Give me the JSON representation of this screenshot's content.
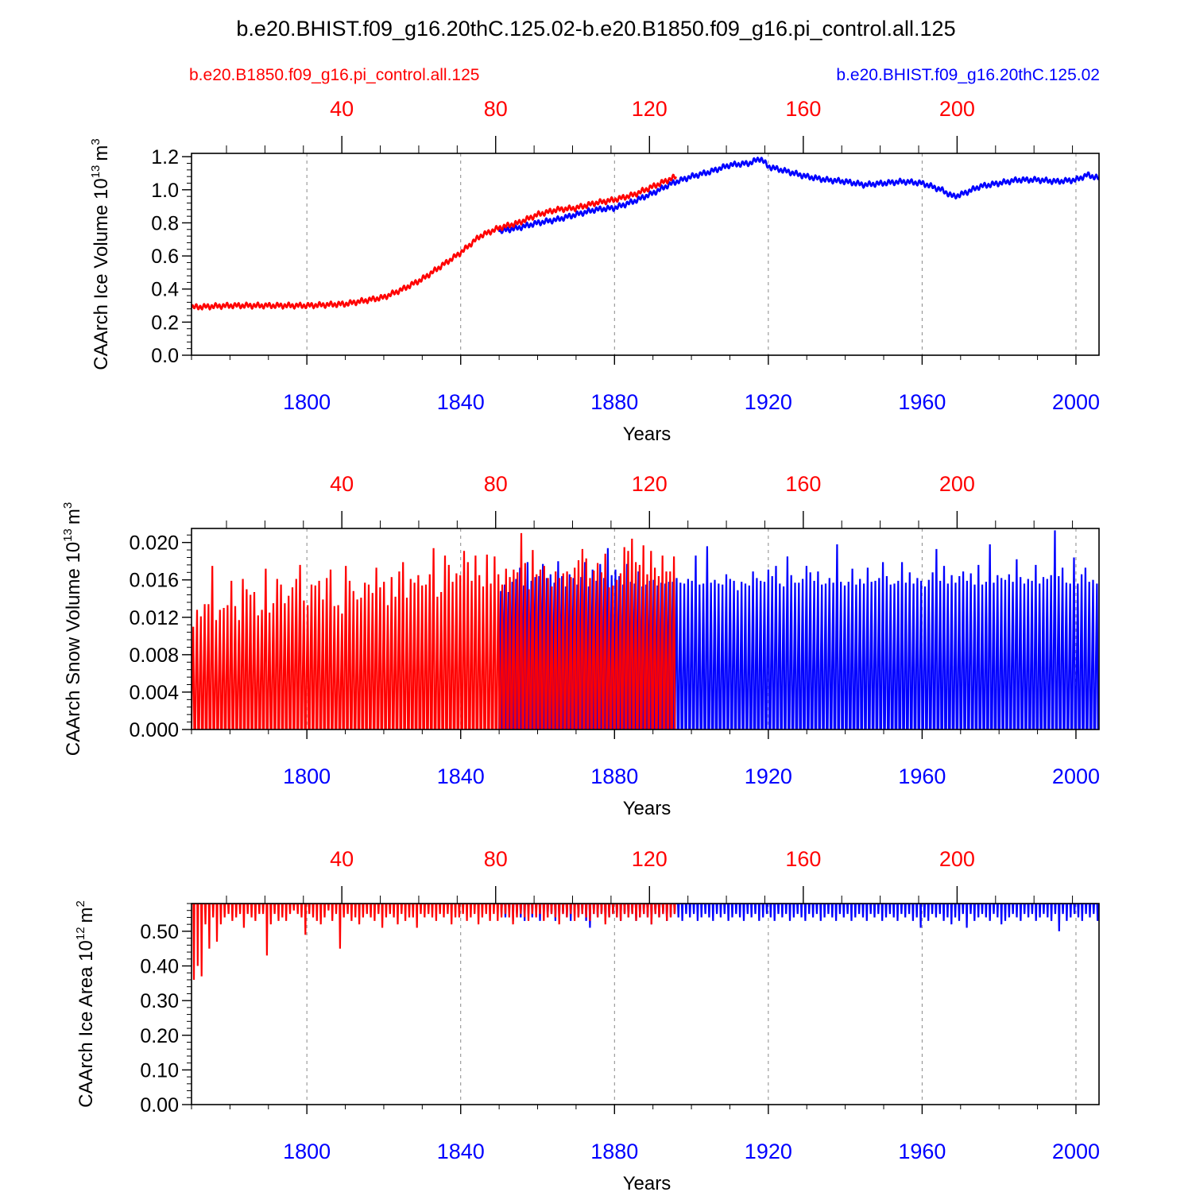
{
  "title": "b.e20.BHIST.f09_g16.20thC.125.02-b.e20.B1850.f09_g16.pi_control.all.125",
  "legend": {
    "control_label": "b.e20.B1850.f09_g16.pi_control.all.125",
    "hist_label": "b.e20.BHIST.f09_g16.20thC.125.02"
  },
  "colors": {
    "control": "#ff0000",
    "hist": "#0000ff",
    "axis": "#000000",
    "grid": "#888888"
  },
  "chart_data": [
    {
      "type": "line",
      "name": "ice-volume",
      "ylabel": "CAArch Ice Volume 10^13 m^3",
      "ylabel_main": "CAArch Ice Volume 10",
      "ylabel_exp": "13",
      "ylabel_unit": "m",
      "ylabel_unit_exp": "3",
      "xlabel": "Years",
      "xlim": [
        1770,
        2006
      ],
      "ylim": [
        0.0,
        1.22
      ],
      "yticks": [
        0.0,
        0.2,
        0.4,
        0.6,
        0.8,
        1.0,
        1.2
      ],
      "ytick_labels": [
        "0.0",
        "0.2",
        "0.4",
        "0.6",
        "0.8",
        "1.0",
        "1.2"
      ],
      "bottom_ticks": [
        1800,
        1840,
        1880,
        1920,
        1960,
        2000
      ],
      "bottom_tick_labels": [
        "1800",
        "1840",
        "1880",
        "1920",
        "1960",
        "2000"
      ],
      "top_ticks": [
        40,
        80,
        120,
        160,
        200
      ],
      "top_tick_labels": [
        "40",
        "80",
        "120",
        "160",
        "200"
      ],
      "series": [
        {
          "name": "b.e20.B1850.f09_g16.pi_control.all.125",
          "color": "#ff0000",
          "x": [
            1770,
            1780,
            1790,
            1800,
            1810,
            1815,
            1820,
            1825,
            1830,
            1835,
            1840,
            1845,
            1850,
            1855,
            1860,
            1865,
            1870,
            1875,
            1880,
            1885,
            1890,
            1896
          ],
          "y": [
            0.29,
            0.3,
            0.3,
            0.3,
            0.31,
            0.33,
            0.35,
            0.4,
            0.46,
            0.54,
            0.62,
            0.72,
            0.77,
            0.8,
            0.85,
            0.88,
            0.89,
            0.92,
            0.94,
            0.97,
            1.02,
            1.08
          ]
        },
        {
          "name": "b.e20.BHIST.f09_g16.20thC.125.02",
          "color": "#0000ff",
          "x": [
            1850,
            1855,
            1860,
            1865,
            1870,
            1875,
            1880,
            1885,
            1890,
            1895,
            1900,
            1905,
            1910,
            1915,
            1918,
            1920,
            1925,
            1930,
            1935,
            1940,
            1945,
            1950,
            1955,
            1960,
            1965,
            1968,
            1970,
            1975,
            1980,
            1985,
            1990,
            1995,
            2000,
            2003,
            2006
          ],
          "y": [
            0.75,
            0.77,
            0.8,
            0.82,
            0.85,
            0.88,
            0.89,
            0.93,
            0.98,
            1.04,
            1.08,
            1.11,
            1.15,
            1.16,
            1.19,
            1.14,
            1.11,
            1.08,
            1.06,
            1.05,
            1.03,
            1.04,
            1.05,
            1.04,
            1.0,
            0.96,
            0.97,
            1.02,
            1.04,
            1.06,
            1.06,
            1.05,
            1.06,
            1.09,
            1.07
          ]
        }
      ]
    },
    {
      "type": "line",
      "name": "snow-volume",
      "ylabel": "CAArch Snow Volume 10^13 m^3",
      "ylabel_main": "CAArch Snow Volume 10",
      "ylabel_exp": "13",
      "ylabel_unit": "m",
      "ylabel_unit_exp": "3",
      "xlabel": "Years",
      "xlim": [
        1770,
        2006
      ],
      "ylim": [
        0.0,
        0.0215
      ],
      "yticks": [
        0.0,
        0.004,
        0.008,
        0.012,
        0.016,
        0.02
      ],
      "ytick_labels": [
        "0.000",
        "0.004",
        "0.008",
        "0.012",
        "0.016",
        "0.020"
      ],
      "bottom_ticks": [
        1800,
        1840,
        1880,
        1920,
        1960,
        2000
      ],
      "bottom_tick_labels": [
        "1800",
        "1840",
        "1880",
        "1920",
        "1960",
        "2000"
      ],
      "top_ticks": [
        40,
        80,
        120,
        160,
        200
      ],
      "top_tick_labels": [
        "40",
        "80",
        "120",
        "160",
        "200"
      ],
      "seasonal": {
        "min": 0.0,
        "typical_max": 0.015
      },
      "series": [
        {
          "name": "b.e20.B1850.f09_g16.pi_control.all.125",
          "color": "#ff0000",
          "x_start": 1770,
          "x_end": 1896,
          "peaks": [
            0.011,
            0.0128,
            0.0121,
            0.0134,
            0.0134,
            0.0175,
            0.0117,
            0.0128,
            0.013,
            0.0133,
            0.0159,
            0.0132,
            0.0117,
            0.0161,
            0.015,
            0.0144,
            0.0147,
            0.0122,
            0.0128,
            0.0172,
            0.0125,
            0.0135,
            0.0161,
            0.0155,
            0.0135,
            0.0143,
            0.0152,
            0.0161,
            0.0176,
            0.0138,
            0.0133,
            0.0155,
            0.0154,
            0.0159,
            0.0139,
            0.0162,
            0.0171,
            0.0132,
            0.0133,
            0.0124,
            0.0175,
            0.0159,
            0.0148,
            0.0139,
            0.0141,
            0.0157,
            0.0155,
            0.0146,
            0.0173,
            0.0152,
            0.0158,
            0.0133,
            0.0163,
            0.0142,
            0.0169,
            0.0179,
            0.0141,
            0.0161,
            0.0157,
            0.0165,
            0.0154,
            0.0155,
            0.0166,
            0.0194,
            0.0142,
            0.0147,
            0.0186,
            0.0176,
            0.0158,
            0.0167,
            0.0165,
            0.0191,
            0.0179,
            0.0159,
            0.0186,
            0.0165,
            0.0153,
            0.0187,
            0.0156,
            0.0185,
            0.0166,
            0.0155,
            0.0172,
            0.0163,
            0.0171,
            0.0168,
            0.021,
            0.0178,
            0.015,
            0.0192,
            0.0166,
            0.0171,
            0.0175,
            0.0162,
            0.0153,
            0.0169,
            0.0162,
            0.0167,
            0.0169,
            0.0163,
            0.0173,
            0.0181,
            0.0193,
            0.0183,
            0.0162,
            0.017,
            0.0178,
            0.0168,
            0.0188,
            0.0152,
            0.0154,
            0.016,
            0.0167,
            0.0195,
            0.0191,
            0.0204,
            0.0179,
            0.0176,
            0.0197,
            0.0166,
            0.0191,
            0.0173,
            0.0164,
            0.0186,
            0.0169,
            0.0169,
            0.0185
          ]
        },
        {
          "name": "b.e20.BHIST.f09_g16.20thC.125.02",
          "color": "#0000ff",
          "x_start": 1850,
          "x_end": 2006,
          "peaks": [
            0.0148,
            0.0155,
            0.0147,
            0.0158,
            0.0161,
            0.0173,
            0.0154,
            0.0179,
            0.0159,
            0.0163,
            0.0164,
            0.0177,
            0.0162,
            0.0166,
            0.0157,
            0.018,
            0.0164,
            0.0153,
            0.0166,
            0.0162,
            0.0155,
            0.0163,
            0.0179,
            0.0153,
            0.0171,
            0.0159,
            0.0177,
            0.0162,
            0.0194,
            0.0165,
            0.0171,
            0.0164,
            0.0155,
            0.0177,
            0.0158,
            0.0156,
            0.0169,
            0.0153,
            0.0155,
            0.0159,
            0.016,
            0.0154,
            0.0157,
            0.0156,
            0.0158,
            0.0158,
            0.0162,
            0.0157,
            0.0156,
            0.0161,
            0.0159,
            0.0186,
            0.0155,
            0.0156,
            0.0196,
            0.0157,
            0.016,
            0.0156,
            0.0155,
            0.0166,
            0.0161,
            0.0159,
            0.0149,
            0.0158,
            0.0156,
            0.0154,
            0.0169,
            0.0162,
            0.0159,
            0.0158,
            0.0171,
            0.0164,
            0.0175,
            0.0156,
            0.0153,
            0.0185,
            0.0165,
            0.0157,
            0.0157,
            0.0161,
            0.0175,
            0.0168,
            0.0159,
            0.0169,
            0.0155,
            0.0156,
            0.0162,
            0.0157,
            0.0198,
            0.0158,
            0.0154,
            0.0158,
            0.0172,
            0.0155,
            0.0161,
            0.0156,
            0.0173,
            0.0158,
            0.0159,
            0.0162,
            0.0179,
            0.0164,
            0.0155,
            0.0156,
            0.0159,
            0.0179,
            0.0157,
            0.0168,
            0.0156,
            0.0162,
            0.0159,
            0.0153,
            0.016,
            0.0168,
            0.0193,
            0.0159,
            0.0175,
            0.0156,
            0.0165,
            0.0157,
            0.0164,
            0.0169,
            0.0159,
            0.0167,
            0.0155,
            0.0176,
            0.0155,
            0.0158,
            0.0198,
            0.0157,
            0.0165,
            0.0162,
            0.016,
            0.0166,
            0.0158,
            0.0182,
            0.0163,
            0.0156,
            0.0161,
            0.0159,
            0.0176,
            0.0156,
            0.0163,
            0.0161,
            0.0165,
            0.0213,
            0.0164,
            0.0173,
            0.0157,
            0.0156,
            0.0184,
            0.0156,
            0.0166,
            0.0173,
            0.0158,
            0.016,
            0.0156
          ]
        }
      ]
    },
    {
      "type": "line",
      "name": "ice-area",
      "ylabel": "CAArch Ice Area 10^12 m^2",
      "ylabel_main": "CAArch Ice Area 10",
      "ylabel_exp": "12",
      "ylabel_unit": "m",
      "ylabel_unit_exp": "2",
      "xlabel": "Years",
      "xlim": [
        1770,
        2006
      ],
      "ylim": [
        0.0,
        0.58
      ],
      "yticks": [
        0.0,
        0.1,
        0.2,
        0.3,
        0.4,
        0.5
      ],
      "ytick_labels": [
        "0.00",
        "0.10",
        "0.20",
        "0.30",
        "0.40",
        "0.50"
      ],
      "bottom_ticks": [
        1800,
        1840,
        1880,
        1920,
        1960,
        2000
      ],
      "bottom_tick_labels": [
        "1800",
        "1840",
        "1880",
        "1920",
        "1960",
        "2000"
      ],
      "top_ticks": [
        40,
        80,
        120,
        160,
        200
      ],
      "top_tick_labels": [
        "40",
        "80",
        "120",
        "160",
        "200"
      ],
      "seasonal": {
        "max": 0.58
      },
      "series": [
        {
          "name": "b.e20.B1850.f09_g16.pi_control.all.125",
          "color": "#ff0000",
          "x_start": 1770,
          "x_end": 1896,
          "minima": [
            0.36,
            0.4,
            0.37,
            0.52,
            0.45,
            0.54,
            0.47,
            0.52,
            0.54,
            0.55,
            0.53,
            0.54,
            0.55,
            0.51,
            0.55,
            0.54,
            0.53,
            0.55,
            0.55,
            0.43,
            0.52,
            0.55,
            0.53,
            0.54,
            0.53,
            0.55,
            0.56,
            0.55,
            0.54,
            0.49,
            0.55,
            0.54,
            0.53,
            0.52,
            0.54,
            0.56,
            0.53,
            0.55,
            0.45,
            0.54,
            0.55,
            0.53,
            0.54,
            0.52,
            0.54,
            0.55,
            0.54,
            0.53,
            0.55,
            0.51,
            0.54,
            0.55,
            0.54,
            0.52,
            0.55,
            0.53,
            0.54,
            0.54,
            0.51,
            0.55,
            0.54,
            0.55,
            0.54,
            0.53,
            0.55,
            0.54,
            0.55,
            0.52,
            0.54,
            0.54,
            0.55,
            0.53,
            0.54,
            0.55,
            0.52,
            0.54,
            0.55,
            0.53,
            0.55,
            0.53,
            0.54,
            0.55,
            0.54,
            0.52,
            0.54,
            0.55,
            0.54,
            0.53,
            0.55,
            0.54,
            0.55,
            0.53,
            0.54,
            0.55,
            0.54,
            0.52,
            0.55,
            0.54,
            0.55,
            0.53,
            0.54,
            0.55,
            0.54,
            0.53,
            0.55,
            0.54,
            0.55,
            0.52,
            0.54,
            0.55,
            0.54,
            0.53,
            0.55,
            0.54,
            0.55,
            0.53,
            0.54,
            0.55,
            0.54,
            0.52,
            0.55,
            0.54,
            0.55,
            0.53,
            0.54,
            0.55
          ]
        },
        {
          "name": "b.e20.BHIST.f09_g16.20thC.125.02",
          "color": "#0000ff",
          "x_start": 1850,
          "x_end": 2006,
          "minima": [
            0.55,
            0.54,
            0.56,
            0.53,
            0.55,
            0.54,
            0.53,
            0.55,
            0.54,
            0.56,
            0.53,
            0.55,
            0.54,
            0.55,
            0.53,
            0.54,
            0.55,
            0.54,
            0.53,
            0.55,
            0.54,
            0.55,
            0.53,
            0.51,
            0.55,
            0.54,
            0.55,
            0.53,
            0.54,
            0.55,
            0.54,
            0.53,
            0.55,
            0.54,
            0.55,
            0.53,
            0.54,
            0.55,
            0.54,
            0.52,
            0.55,
            0.54,
            0.55,
            0.53,
            0.54,
            0.55,
            0.54,
            0.53,
            0.55,
            0.54,
            0.55,
            0.53,
            0.54,
            0.55,
            0.54,
            0.53,
            0.55,
            0.54,
            0.55,
            0.53,
            0.54,
            0.55,
            0.54,
            0.53,
            0.55,
            0.54,
            0.55,
            0.53,
            0.54,
            0.55,
            0.54,
            0.53,
            0.55,
            0.54,
            0.55,
            0.53,
            0.54,
            0.55,
            0.54,
            0.53,
            0.55,
            0.54,
            0.55,
            0.53,
            0.54,
            0.55,
            0.54,
            0.53,
            0.55,
            0.54,
            0.55,
            0.53,
            0.54,
            0.55,
            0.54,
            0.53,
            0.55,
            0.54,
            0.55,
            0.53,
            0.54,
            0.55,
            0.54,
            0.53,
            0.55,
            0.54,
            0.55,
            0.53,
            0.54,
            0.51,
            0.54,
            0.53,
            0.55,
            0.54,
            0.55,
            0.53,
            0.54,
            0.52,
            0.54,
            0.53,
            0.55,
            0.51,
            0.55,
            0.53,
            0.54,
            0.55,
            0.54,
            0.53,
            0.55,
            0.54,
            0.52,
            0.53,
            0.54,
            0.55,
            0.54,
            0.53,
            0.55,
            0.54,
            0.55,
            0.53,
            0.54,
            0.55,
            0.54,
            0.53,
            0.55,
            0.5,
            0.55,
            0.53,
            0.54,
            0.55,
            0.54,
            0.53,
            0.55,
            0.54,
            0.55,
            0.53
          ]
        }
      ]
    }
  ]
}
